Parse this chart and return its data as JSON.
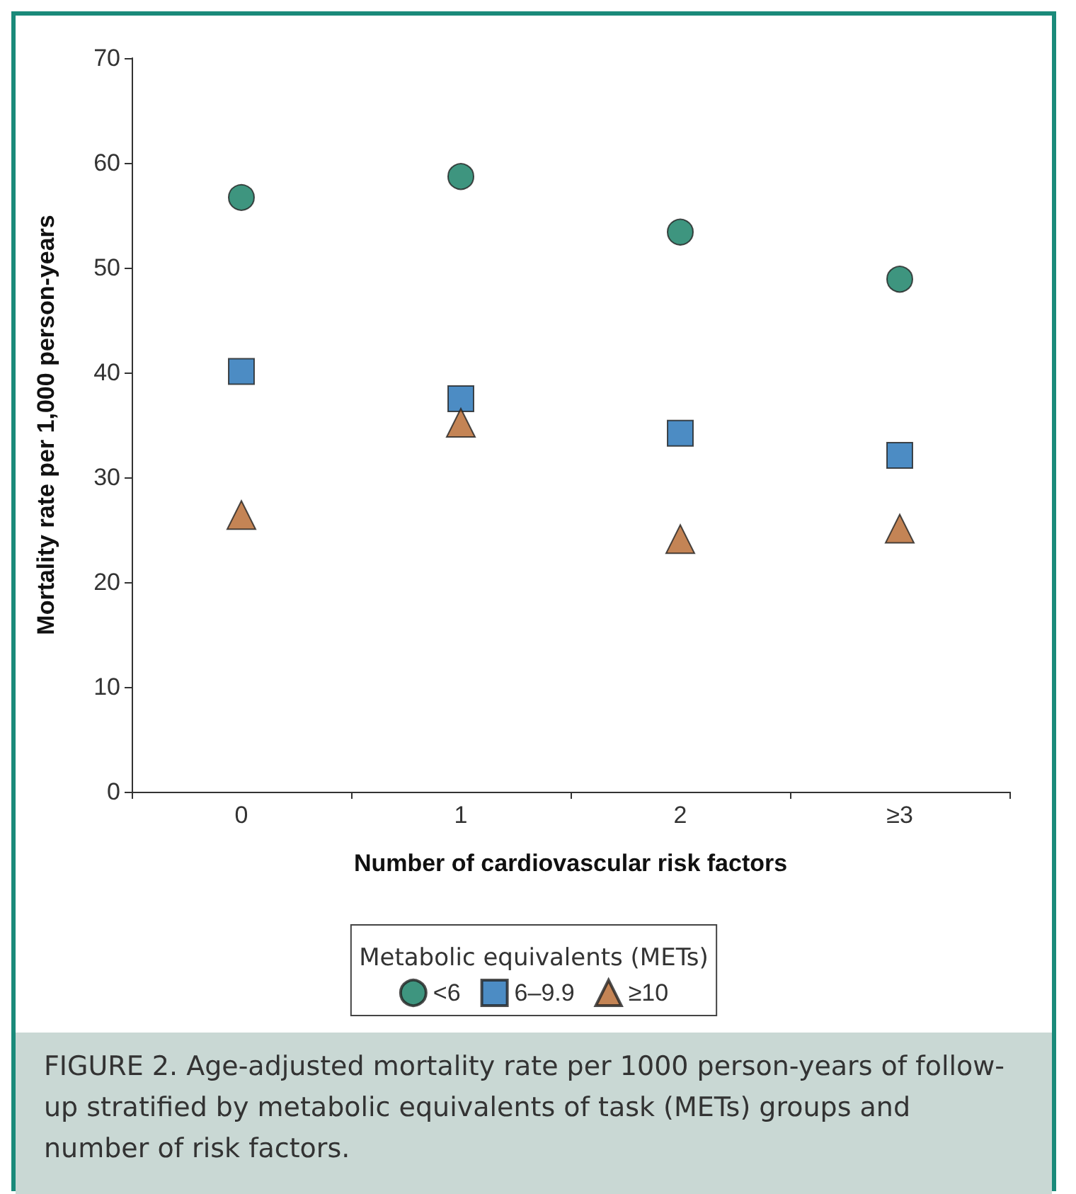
{
  "chart_data": {
    "type": "scatter",
    "xlabel": "Number of cardiovascular risk factors",
    "ylabel": "Mortality rate per 1,000 person-years",
    "legend_title": "Metabolic equivalents (METs)",
    "legend": "bottom",
    "grid": false,
    "categories": [
      "0",
      "1",
      "2",
      "≥3"
    ],
    "ylim": [
      0,
      70
    ],
    "yticks": [
      0,
      10,
      20,
      30,
      40,
      50,
      60,
      70
    ],
    "series": [
      {
        "name": "<6",
        "color": "#0e7a5f",
        "marker": "circle",
        "values": [
          56.7,
          58.7,
          53.4,
          48.9
        ]
      },
      {
        "name": "6–9.9",
        "color": "#1f6fb5",
        "marker": "square",
        "values": [
          40.1,
          37.5,
          34.2,
          32.1
        ]
      },
      {
        "name": "≥10",
        "color": "#b5652a",
        "marker": "triangle",
        "values": [
          26.4,
          35.2,
          24.1,
          25.1
        ]
      }
    ],
    "annotations": [
      "FIGURE 2. Age-adjusted mortality rate per 1000 person-years of follow-up stratified by metabolic equivalents of task (METs) groups and number of risk factors."
    ]
  }
}
